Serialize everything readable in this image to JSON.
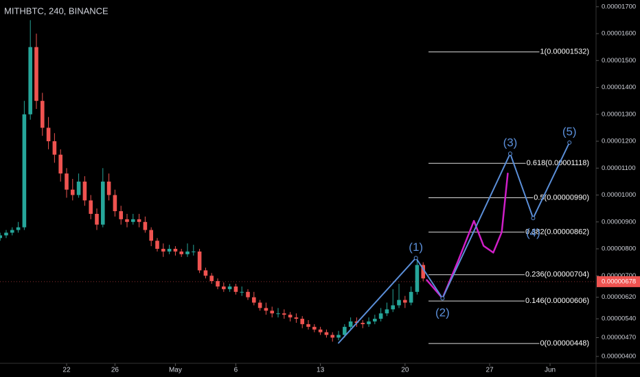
{
  "chart_data": {
    "type": "candlestick",
    "title": "MITHBTC, 240, BINANCE",
    "up_color": "#26a69a",
    "down_color": "#ef5350",
    "x": [
      -5.5,
      -5,
      -4.5,
      -4,
      -3.5,
      -3,
      -2.5,
      -2,
      -1.5,
      -1,
      -0.5,
      0,
      0.5,
      1,
      1.5,
      2,
      2.5,
      3,
      3.5,
      4,
      4.5,
      5,
      5.5,
      6,
      6.5,
      7,
      7.5,
      8,
      8.5,
      9,
      9.5,
      10,
      10.5,
      11,
      11.5,
      12,
      12.5,
      13,
      13.5,
      14,
      14.5,
      15,
      15.5,
      16,
      16.5,
      17,
      17.5,
      18,
      18.5,
      19,
      19.5,
      20,
      20.5,
      21,
      21.5,
      22,
      22.5,
      23,
      23.5,
      24,
      24.5,
      25,
      25.5,
      26,
      26.5,
      27,
      27.5,
      28,
      28.5,
      29,
      29.5
    ],
    "open": [
      8.4e-06,
      8.5e-06,
      8.6e-06,
      8.7e-06,
      8.8e-06,
      1.3e-05,
      1.55e-05,
      1.35e-05,
      1.25e-05,
      1.2e-05,
      1.15e-05,
      1.08e-05,
      1.02e-05,
      1e-05,
      1.05e-05,
      9.8e-06,
      9.3e-06,
      8.9e-06,
      1.05e-05,
      1e-05,
      9.4e-06,
      9.1e-06,
      9e-06,
      9.1e-06,
      9e-06,
      8.7e-06,
      8.3e-06,
      8e-06,
      7.9e-06,
      8e-06,
      7.9e-06,
      7.8e-06,
      7.9e-06,
      7.9e-06,
      7.2e-06,
      7e-06,
      6.8e-06,
      6.6e-06,
      6.5e-06,
      6.6e-06,
      6.4e-06,
      6.4e-06,
      6.2e-06,
      6e-06,
      5.8e-06,
      5.7e-06,
      5.6e-06,
      5.6e-06,
      5.55e-06,
      5.45e-06,
      5.4e-06,
      5.2e-06,
      5.1e-06,
      5e-06,
      4.9e-06,
      4.8e-06,
      4.7e-06,
      4.8e-06,
      5.1e-06,
      5.3e-06,
      5.25e-06,
      5.2e-06,
      5.3e-06,
      5.4e-06,
      5.6e-06,
      5.75e-06,
      5.9e-06,
      6.1e-06,
      6e-06,
      6.4e-06,
      7.4e-06
    ],
    "high": [
      8.6e-06,
      8.7e-06,
      8.8e-06,
      9e-06,
      1.35e-05,
      1.65e-05,
      1.6e-05,
      1.38e-05,
      1.29e-05,
      1.23e-05,
      1.17e-05,
      1.1e-05,
      1.06e-05,
      1.08e-05,
      1.07e-05,
      1e-05,
      9.5e-06,
      1.1e-05,
      1.08e-05,
      1.02e-05,
      9.6e-06,
      9.3e-06,
      9.3e-06,
      9.3e-06,
      9.2e-06,
      8.8e-06,
      8.4e-06,
      8.2e-06,
      8.15e-06,
      8.1e-06,
      8e-06,
      8.2e-06,
      8.15e-06,
      8e-06,
      7.3e-06,
      7.1e-06,
      6.9e-06,
      6.75e-06,
      6.7e-06,
      6.7e-06,
      6.6e-06,
      6.5e-06,
      6.4e-06,
      6.1e-06,
      6e-06,
      5.85e-06,
      5.8e-06,
      5.75e-06,
      5.65e-06,
      5.6e-06,
      5.5e-06,
      5.35e-06,
      5.2e-06,
      5.1e-06,
      5e-06,
      4.9e-06,
      4.95e-06,
      5.2e-06,
      5.45e-06,
      5.45e-06,
      5.35e-06,
      5.45e-06,
      5.55e-06,
      5.8e-06,
      6e-06,
      6.5e-06,
      6.7e-06,
      6.25e-06,
      6.6e-06,
      7.6e-06,
      7.5e-06
    ],
    "low": [
      8.3e-06,
      8.4e-06,
      8.5e-06,
      8.6e-06,
      8.7e-06,
      1.28e-05,
      1.32e-05,
      1.22e-05,
      1.17e-05,
      1.12e-05,
      1.05e-05,
      9.9e-06,
      9.8e-06,
      9.9e-06,
      9.6e-06,
      9.1e-06,
      8.7e-06,
      8.8e-06,
      9.8e-06,
      9.2e-06,
      8.9e-06,
      8.8e-06,
      8.9e-06,
      8.8e-06,
      8.6e-06,
      8.1e-06,
      7.9e-06,
      7.7e-06,
      7.8e-06,
      7.75e-06,
      7.7e-06,
      7.7e-06,
      7.75e-06,
      7.1e-06,
      6.9e-06,
      6.7e-06,
      6.5e-06,
      6.4e-06,
      6.4e-06,
      6.3e-06,
      6.25e-06,
      6.1e-06,
      5.9e-06,
      5.7e-06,
      5.55e-06,
      5.45e-06,
      5.45e-06,
      5.4e-06,
      5.3e-06,
      5.25e-06,
      5.05e-06,
      5e-06,
      4.9e-06,
      4.8e-06,
      4.7e-06,
      4.55e-06,
      4.6e-06,
      4.7e-06,
      5e-06,
      5.1e-06,
      5.05e-06,
      5.1e-06,
      5.2e-06,
      5.3e-06,
      5.5e-06,
      5.65e-06,
      5.8e-06,
      5.8e-06,
      5.9e-06,
      6.3e-06,
      6.8e-06
    ],
    "close": [
      8.5e-06,
      8.6e-06,
      8.7e-06,
      8.8e-06,
      1.3e-05,
      1.55e-05,
      1.35e-05,
      1.25e-05,
      1.2e-05,
      1.15e-05,
      1.08e-05,
      1.02e-05,
      1e-05,
      1.05e-05,
      9.8e-06,
      9.3e-06,
      8.9e-06,
      1.05e-05,
      1e-05,
      9.4e-06,
      9.1e-06,
      9e-06,
      9.1e-06,
      9e-06,
      8.7e-06,
      8.3e-06,
      8e-06,
      7.9e-06,
      8e-06,
      7.9e-06,
      7.8e-06,
      7.9e-06,
      7.9e-06,
      7.2e-06,
      7e-06,
      6.8e-06,
      6.6e-06,
      6.5e-06,
      6.6e-06,
      6.4e-06,
      6.4e-06,
      6.2e-06,
      6e-06,
      5.8e-06,
      5.7e-06,
      5.6e-06,
      5.6e-06,
      5.55e-06,
      5.45e-06,
      5.4e-06,
      5.2e-06,
      5.1e-06,
      5e-06,
      4.9e-06,
      4.8e-06,
      4.7e-06,
      4.8e-06,
      5.1e-06,
      5.3e-06,
      5.25e-06,
      5.2e-06,
      5.3e-06,
      5.4e-06,
      5.6e-06,
      5.75e-06,
      5.9e-06,
      6.1e-06,
      6e-06,
      6.4e-06,
      7.4e-06,
      6.9e-06
    ],
    "xlim": [
      -5.51,
      43.69
    ],
    "xticks": [
      {
        "value": 0,
        "label": "22"
      },
      {
        "value": 4,
        "label": "26"
      },
      {
        "value": 9,
        "label": "May"
      },
      {
        "value": 14,
        "label": "6"
      },
      {
        "value": 21,
        "label": "13"
      },
      {
        "value": 28,
        "label": "20"
      },
      {
        "value": 35,
        "label": "27"
      },
      {
        "value": 40,
        "label": "Jun"
      }
    ],
    "ylim": [
      3.745e-06,
      1.725e-05
    ],
    "yticks": [
      {
        "value": 1.7e-05,
        "label": "0.00001700"
      },
      {
        "value": 1.6e-05,
        "label": "0.00001600"
      },
      {
        "value": 1.5e-05,
        "label": "0.00001500"
      },
      {
        "value": 1.4e-05,
        "label": "0.00001400"
      },
      {
        "value": 1.3e-05,
        "label": "0.00001300"
      },
      {
        "value": 1.2e-05,
        "label": "0.00001200"
      },
      {
        "value": 1.1e-05,
        "label": "0.00001100"
      },
      {
        "value": 1e-05,
        "label": "0.00001000"
      },
      {
        "value": 9e-06,
        "label": "0.00000900"
      },
      {
        "value": 8e-06,
        "label": "0.00000800"
      },
      {
        "value": 7e-06,
        "label": "0.00000700"
      },
      {
        "value": 6.2e-06,
        "label": "0.00000620"
      },
      {
        "value": 5.4e-06,
        "label": "0.00000540"
      },
      {
        "value": 4.7e-06,
        "label": "0.00000470"
      },
      {
        "value": 4e-06,
        "label": "0.00000400"
      }
    ],
    "last_price": {
      "value": 6.78e-06,
      "label": "0.00000678",
      "color": "#ef5350"
    },
    "fib_levels": [
      {
        "value": 1.532e-05,
        "label": "1(0.00001532)"
      },
      {
        "value": 1.118e-05,
        "label": "0.618(0.00001118)"
      },
      {
        "value": 9.9e-06,
        "label": "0.5(0.00000990)"
      },
      {
        "value": 8.62e-06,
        "label": "0.382(0.00000862)"
      },
      {
        "value": 7.04e-06,
        "label": "0.236(0.00000704)"
      },
      {
        "value": 6.06e-06,
        "label": "0.146(0.00000606)"
      },
      {
        "value": 4.48e-06,
        "label": "0(0.00000448)"
      }
    ],
    "waves": {
      "color": "#5b8fd9",
      "x": [
        22.5,
        28.9,
        31.1,
        36.7,
        38.6,
        41.6
      ],
      "values": [
        4.5e-06,
        7.66e-06,
        6.16e-06,
        1.154e-05,
        9.14e-06,
        1.195e-05
      ],
      "labels": [
        null,
        "(1)",
        "(2)",
        "(3)",
        "(4)",
        "(5)"
      ]
    },
    "projection": {
      "color": "#d01fc8",
      "x": [
        29.8,
        31.1,
        32.4,
        33.7,
        34.5,
        35.3,
        36.0,
        36.5
      ],
      "values": [
        6.84e-06,
        6.16e-06,
        7.56e-06,
        9.04e-06,
        8.11e-06,
        7.86e-06,
        8.62e-06,
        1.08e-05
      ]
    }
  }
}
